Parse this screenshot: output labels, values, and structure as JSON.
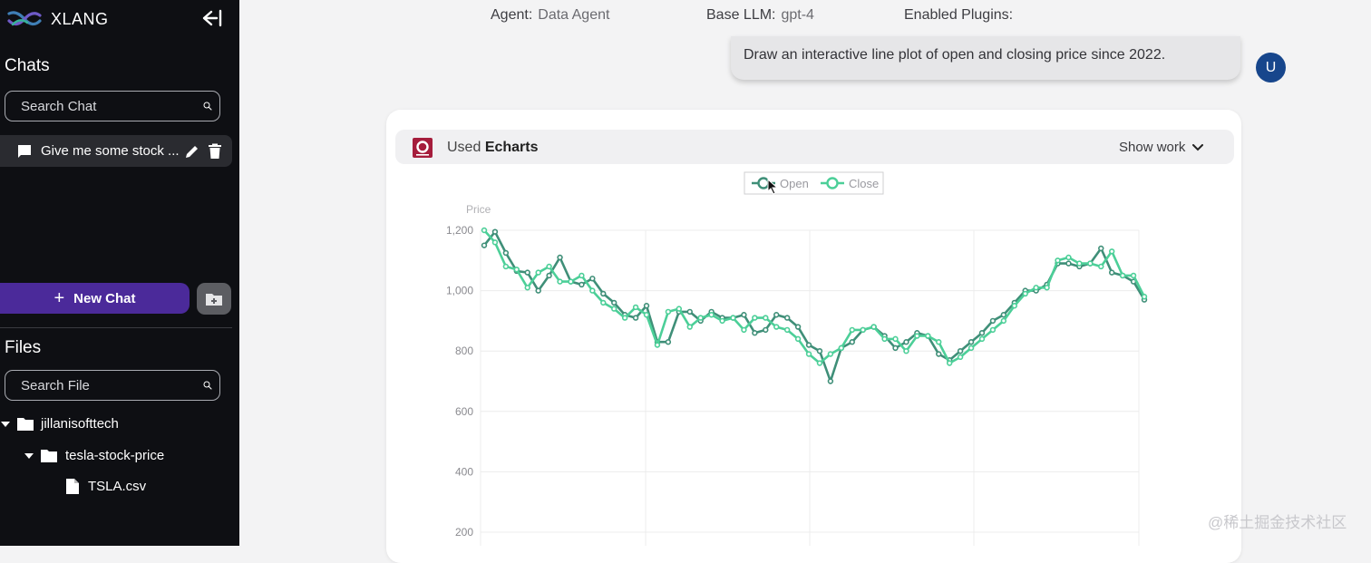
{
  "app": {
    "name": "XLANG"
  },
  "sidebar": {
    "chats_title": "Chats",
    "chat_search_placeholder": "Search Chat",
    "chats": [
      {
        "label": "Give me some stock ..."
      }
    ],
    "new_chat_label": "New Chat",
    "files_title": "Files",
    "file_search_placeholder": "Search File",
    "tree": {
      "root": "jillanisofttech",
      "subfolder": "tesla-stock-price",
      "file": "TSLA.csv"
    }
  },
  "header": {
    "agent_label": "Agent:",
    "agent_value": "Data Agent",
    "llm_label": "Base LLM:",
    "llm_value": "gpt-4",
    "plugins_label": "Enabled Plugins:",
    "plugin_icons": [
      "table-plugin-icon",
      "echarts-plugin-icon",
      "kaggle-plugin-icon",
      "document-plugin-icon"
    ]
  },
  "conversation": {
    "user_message": "Draw an interactive line plot of open and closing price since 2022.",
    "user_avatar": "U",
    "tool_used_prefix": "Used",
    "tool_used_name": "Echarts",
    "show_work_label": "Show work"
  },
  "watermark": "@稀土掘金技术社区",
  "colors": {
    "sidebar_bg": "#0e0f13",
    "new_chat": "#4b2a9a",
    "avatar": "#17468c",
    "open_series": "#3f8f78",
    "close_series": "#4ccf98"
  },
  "chart_data": {
    "type": "line",
    "ylabel": "Price",
    "yticks": [
      200,
      400,
      600,
      800,
      1000,
      1200
    ],
    "ylim": [
      200,
      1200
    ],
    "legend_position": "top-center",
    "grid": true,
    "series": [
      {
        "name": "Open",
        "color": "#3f8f78",
        "values": [
          1150,
          1195,
          1125,
          1065,
          1060,
          1000,
          1050,
          1110,
          1030,
          1020,
          1040,
          990,
          960,
          920,
          910,
          950,
          830,
          830,
          930,
          930,
          900,
          930,
          910,
          910,
          920,
          860,
          870,
          920,
          910,
          880,
          820,
          800,
          700,
          810,
          830,
          870,
          880,
          850,
          810,
          830,
          860,
          850,
          790,
          770,
          800,
          830,
          860,
          900,
          920,
          960,
          1000,
          1000,
          1020,
          1090,
          1090,
          1080,
          1090,
          1140,
          1060,
          1050,
          1030,
          970
        ]
      },
      {
        "name": "Close",
        "color": "#4ccf98",
        "values": [
          1200,
          1160,
          1080,
          1070,
          1010,
          1060,
          1080,
          1030,
          1030,
          1050,
          1000,
          960,
          940,
          910,
          945,
          920,
          820,
          930,
          940,
          880,
          910,
          920,
          900,
          910,
          870,
          910,
          910,
          880,
          870,
          840,
          790,
          760,
          790,
          810,
          870,
          870,
          880,
          840,
          840,
          800,
          850,
          850,
          830,
          760,
          780,
          810,
          840,
          870,
          900,
          950,
          990,
          1010,
          1010,
          1100,
          1110,
          1090,
          1090,
          1080,
          1130,
          1050,
          1050,
          980
        ]
      }
    ]
  }
}
